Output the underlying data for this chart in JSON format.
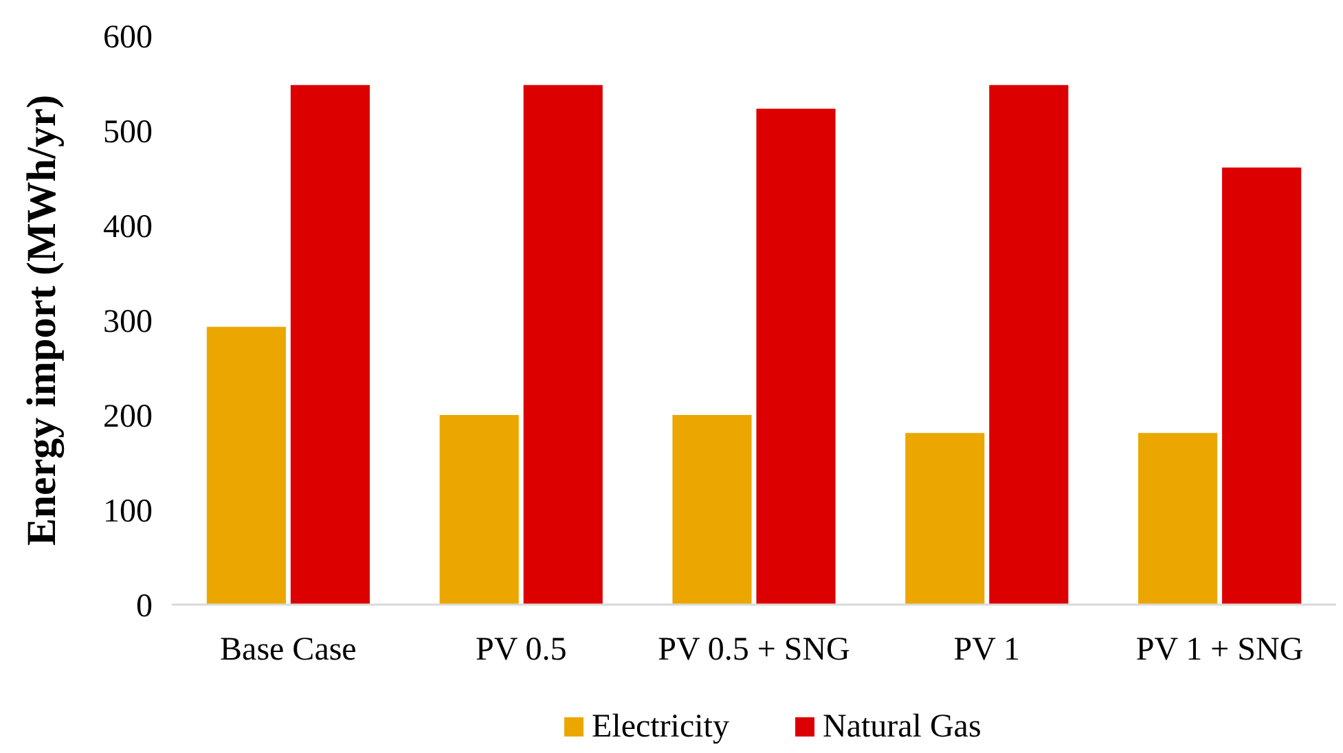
{
  "chart_data": {
    "type": "bar",
    "ylabel": "Energy import (MWh/yr)",
    "categories": [
      "Base Case",
      "PV 0.5",
      "PV 0.5 + SNG",
      "PV 1",
      "PV 1 + SNG"
    ],
    "series": [
      {
        "name": "Electricity",
        "color": "#eba700",
        "values": [
          293,
          200,
          200,
          181,
          181
        ]
      },
      {
        "name": "Natural Gas",
        "color": "#dc0000",
        "values": [
          548,
          548,
          523,
          548,
          461
        ]
      }
    ],
    "ylim": [
      0,
      600
    ],
    "yticks": [
      0,
      100,
      200,
      300,
      400,
      500,
      600
    ],
    "grid": false,
    "legend": "bottom"
  }
}
